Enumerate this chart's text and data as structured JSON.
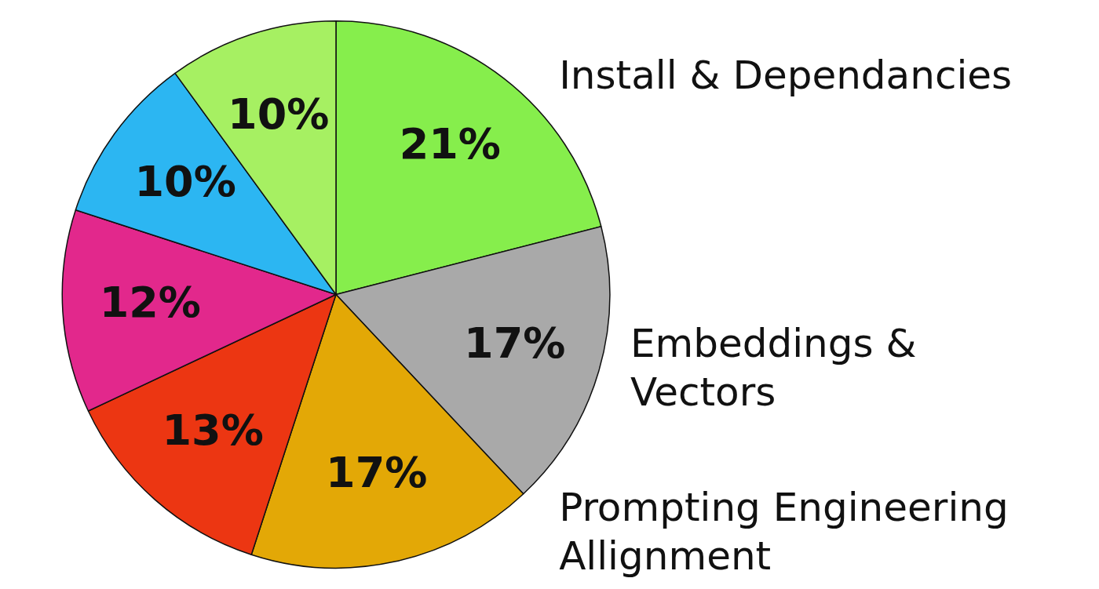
{
  "chart_data": {
    "type": "pie",
    "categories": [
      "Install & Dependancies",
      "Embeddings & Vectors",
      "Prompting Engineering Allignment",
      null,
      null,
      null,
      null
    ],
    "values": [
      21,
      17,
      17,
      13,
      12,
      10,
      10
    ],
    "colors": [
      "#86ee4c",
      "#a9a9a9",
      "#e3a806",
      "#ec3612",
      "#e2288c",
      "#2cb6f2",
      "#a6f062"
    ],
    "value_labels": [
      "21%",
      "17%",
      "17%",
      "13%",
      "12%",
      "10%",
      "10%"
    ],
    "legend": false
  }
}
